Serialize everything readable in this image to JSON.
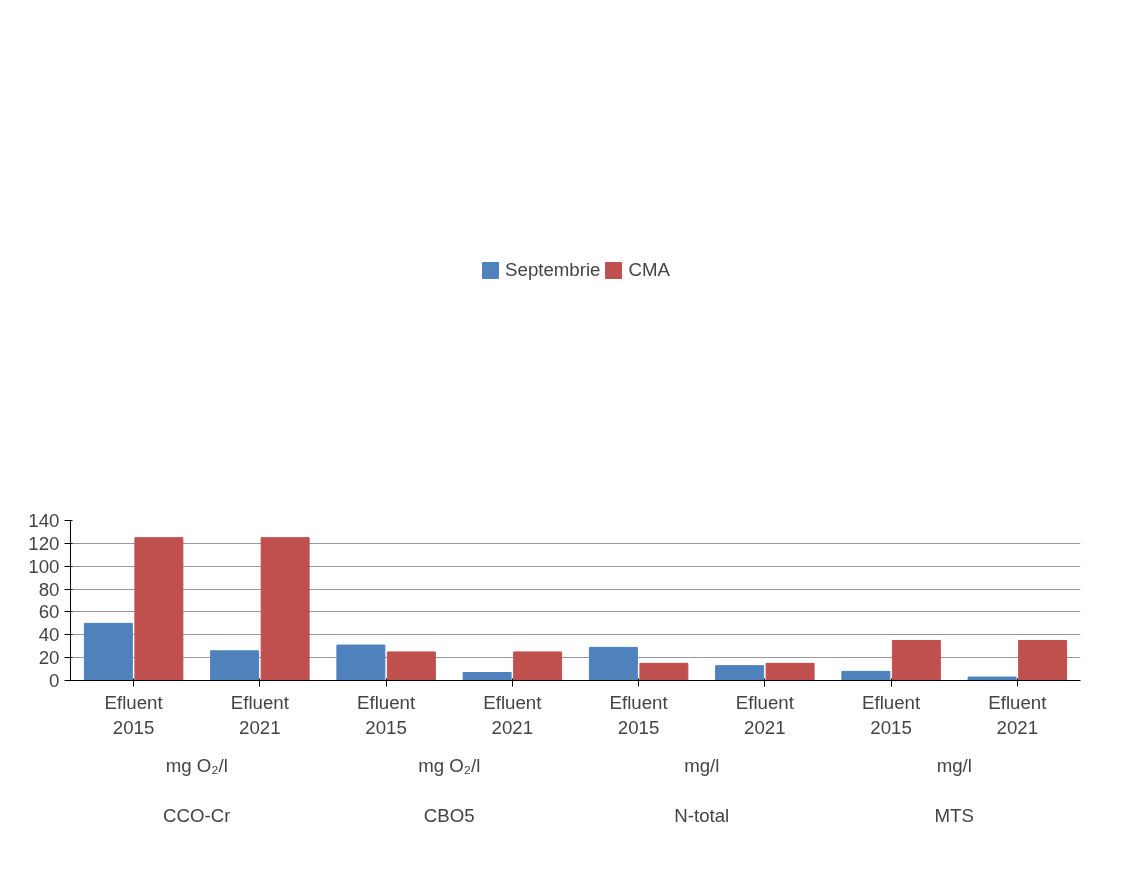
{
  "chart_data": {
    "type": "bar",
    "categories": [
      "Efluent\n2015",
      "Efluent\n2021",
      "Efluent\n2015",
      "Efluent\n2021",
      "Efluent\n2015",
      "Efluent\n2021",
      "Efluent\n2015",
      "Efluent\n2021"
    ],
    "series": [
      {
        "name": "Septembrie",
        "color": "#4f81bd",
        "values": [
          50,
          26,
          31,
          7,
          29,
          13,
          8,
          3
        ]
      },
      {
        "name": "CMA",
        "color": "#c0504d",
        "values": [
          125,
          125,
          25,
          25,
          15,
          15,
          35,
          35
        ]
      }
    ],
    "annotations": [
      "mg O₂/l",
      "CCO-Cr",
      "mg O₂/l",
      "CBO5",
      "mg/l",
      "N-total",
      "mg/l",
      "MTS"
    ],
    "ylim": [
      0,
      140
    ],
    "yticks": [
      0,
      20,
      40,
      60,
      80,
      100,
      120,
      140
    ],
    "grid": "y",
    "legend": "top"
  }
}
